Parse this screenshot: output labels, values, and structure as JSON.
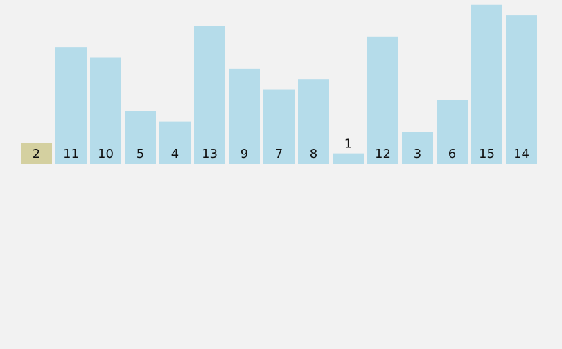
{
  "chart_data": {
    "type": "bar",
    "title": "",
    "xlabel": "",
    "ylabel": "",
    "values": [
      2,
      11,
      10,
      5,
      4,
      13,
      9,
      7,
      8,
      1,
      12,
      3,
      6,
      15,
      14
    ],
    "labels": [
      "2",
      "11",
      "10",
      "5",
      "4",
      "13",
      "9",
      "7",
      "8",
      "1",
      "12",
      "3",
      "6",
      "15",
      "14"
    ],
    "highlighted_index": 0,
    "ylim": [
      0,
      15
    ],
    "grid": false
  },
  "colors": {
    "background": "#f2f2f2",
    "bar": "#b5dcea",
    "highlight": "#d4d0a0",
    "label": "#111111"
  }
}
